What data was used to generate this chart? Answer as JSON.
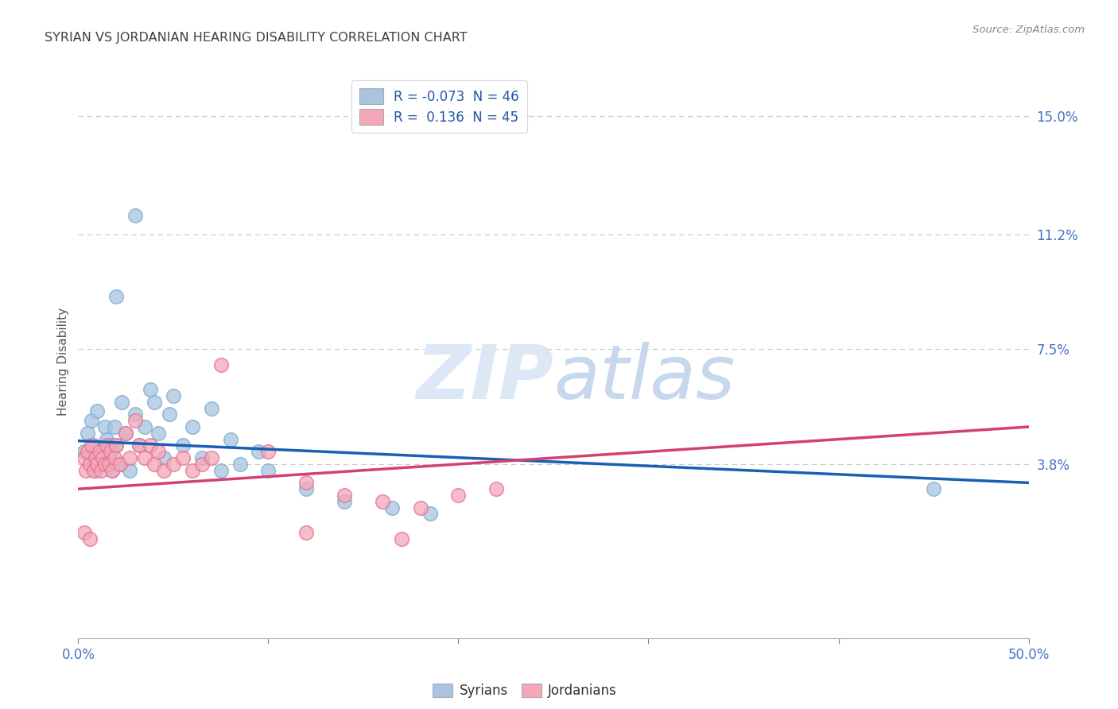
{
  "title": "SYRIAN VS JORDANIAN HEARING DISABILITY CORRELATION CHART",
  "source": "Source: ZipAtlas.com",
  "ylabel": "Hearing Disability",
  "xlim": [
    0.0,
    0.5
  ],
  "ylim": [
    -0.018,
    0.16
  ],
  "xtick_positions": [
    0.0,
    0.1,
    0.2,
    0.3,
    0.4,
    0.5
  ],
  "xtick_labels_shown": [
    "0.0%",
    "",
    "",
    "",
    "",
    "50.0%"
  ],
  "ytick_positions": [
    0.15,
    0.112,
    0.075,
    0.038
  ],
  "ytick_labels": [
    "15.0%",
    "11.2%",
    "7.5%",
    "3.8%"
  ],
  "legend_r_syrian": "-0.073",
  "legend_n_syrian": "46",
  "legend_r_jordanian": "0.136",
  "legend_n_jordanian": "45",
  "syrian_color_face": "#a8c4e0",
  "syrian_color_edge": "#7aaed0",
  "jordanian_color_face": "#f4a7b9",
  "jordanian_color_edge": "#e87090",
  "syrian_line_color": "#1a5fb4",
  "jordanian_line_color": "#d44070",
  "watermark_color": "#dce8f5",
  "background_color": "#ffffff",
  "grid_color": "#c8c8c8",
  "title_color": "#404040",
  "axis_label_color": "#555555",
  "tick_label_color": "#4472c4",
  "source_color": "#888888",
  "legend_text_color": "#2255aa",
  "syrian_scatter": [
    [
      0.003,
      0.042
    ],
    [
      0.005,
      0.048
    ],
    [
      0.006,
      0.038
    ],
    [
      0.007,
      0.052
    ],
    [
      0.008,
      0.044
    ],
    [
      0.009,
      0.036
    ],
    [
      0.01,
      0.055
    ],
    [
      0.011,
      0.04
    ],
    [
      0.012,
      0.042
    ],
    [
      0.013,
      0.038
    ],
    [
      0.014,
      0.05
    ],
    [
      0.015,
      0.046
    ],
    [
      0.016,
      0.04
    ],
    [
      0.017,
      0.044
    ],
    [
      0.018,
      0.036
    ],
    [
      0.019,
      0.05
    ],
    [
      0.02,
      0.044
    ],
    [
      0.022,
      0.038
    ],
    [
      0.023,
      0.058
    ],
    [
      0.025,
      0.048
    ],
    [
      0.027,
      0.036
    ],
    [
      0.03,
      0.054
    ],
    [
      0.032,
      0.044
    ],
    [
      0.035,
      0.05
    ],
    [
      0.038,
      0.062
    ],
    [
      0.04,
      0.058
    ],
    [
      0.042,
      0.048
    ],
    [
      0.045,
      0.04
    ],
    [
      0.048,
      0.054
    ],
    [
      0.05,
      0.06
    ],
    [
      0.055,
      0.044
    ],
    [
      0.06,
      0.05
    ],
    [
      0.065,
      0.04
    ],
    [
      0.07,
      0.056
    ],
    [
      0.075,
      0.036
    ],
    [
      0.08,
      0.046
    ],
    [
      0.085,
      0.038
    ],
    [
      0.095,
      0.042
    ],
    [
      0.1,
      0.036
    ],
    [
      0.03,
      0.118
    ],
    [
      0.02,
      0.092
    ],
    [
      0.12,
      0.03
    ],
    [
      0.14,
      0.026
    ],
    [
      0.165,
      0.024
    ],
    [
      0.185,
      0.022
    ],
    [
      0.45,
      0.03
    ]
  ],
  "jordanian_scatter": [
    [
      0.003,
      0.04
    ],
    [
      0.004,
      0.036
    ],
    [
      0.005,
      0.042
    ],
    [
      0.006,
      0.038
    ],
    [
      0.007,
      0.044
    ],
    [
      0.008,
      0.036
    ],
    [
      0.009,
      0.04
    ],
    [
      0.01,
      0.038
    ],
    [
      0.011,
      0.042
    ],
    [
      0.012,
      0.036
    ],
    [
      0.013,
      0.04
    ],
    [
      0.014,
      0.038
    ],
    [
      0.015,
      0.044
    ],
    [
      0.016,
      0.038
    ],
    [
      0.017,
      0.042
    ],
    [
      0.018,
      0.036
    ],
    [
      0.019,
      0.04
    ],
    [
      0.02,
      0.044
    ],
    [
      0.022,
      0.038
    ],
    [
      0.025,
      0.048
    ],
    [
      0.027,
      0.04
    ],
    [
      0.03,
      0.052
    ],
    [
      0.032,
      0.044
    ],
    [
      0.035,
      0.04
    ],
    [
      0.038,
      0.044
    ],
    [
      0.04,
      0.038
    ],
    [
      0.042,
      0.042
    ],
    [
      0.045,
      0.036
    ],
    [
      0.05,
      0.038
    ],
    [
      0.055,
      0.04
    ],
    [
      0.06,
      0.036
    ],
    [
      0.065,
      0.038
    ],
    [
      0.07,
      0.04
    ],
    [
      0.075,
      0.07
    ],
    [
      0.1,
      0.042
    ],
    [
      0.12,
      0.032
    ],
    [
      0.14,
      0.028
    ],
    [
      0.16,
      0.026
    ],
    [
      0.18,
      0.024
    ],
    [
      0.2,
      0.028
    ],
    [
      0.22,
      0.03
    ],
    [
      0.003,
      0.016
    ],
    [
      0.006,
      0.014
    ],
    [
      0.12,
      0.016
    ],
    [
      0.17,
      0.014
    ]
  ],
  "syrian_trendline_x": [
    0.0,
    0.5
  ],
  "syrian_trendline_y": [
    0.0455,
    0.032
  ],
  "jordanian_trendline_x": [
    0.0,
    0.5
  ],
  "jordanian_trendline_y": [
    0.03,
    0.05
  ]
}
